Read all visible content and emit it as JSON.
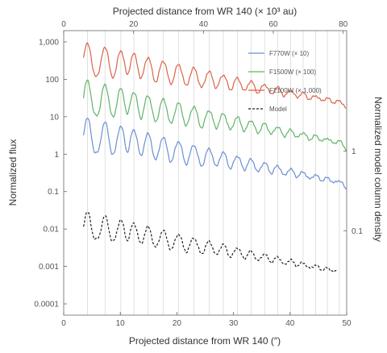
{
  "chart_data": {
    "type": "line",
    "x_bottom_label": "Projected distance from WR 140 (″)",
    "x_top_label": "Projected distance from WR 140 (× 10³ au)",
    "y_left_label": "Normalized flux",
    "y_right_label": "Normalized model column density",
    "x_bottom_lim": [
      0,
      50
    ],
    "x_bottom_ticks": [
      0,
      10,
      20,
      30,
      40,
      50
    ],
    "x_top_lim": [
      0,
      81
    ],
    "x_top_ticks": [
      0,
      20,
      40,
      60,
      80
    ],
    "y_left_scale": "log",
    "y_left_lim": [
      5e-05,
      2000
    ],
    "y_left_tick_labels": [
      "1,000",
      "100",
      "10",
      "1",
      "0.1",
      "0.01",
      "0.001",
      "0.0001"
    ],
    "y_right_tick_labels": [
      "1",
      "0.1"
    ],
    "vertical_guides": [
      4.2,
      7.3,
      10.1,
      12.4,
      14.9,
      17.6,
      20.3,
      23.0,
      25.7,
      28.2,
      30.7,
      33.1,
      35.5,
      37.8,
      40.1,
      42.3,
      44.5,
      46.6,
      48.7
    ],
    "legend": {
      "position": "top-right"
    },
    "series": [
      {
        "name": "F770W (× 10)",
        "color": "#6b8fd1",
        "style": "solid",
        "x_range": [
          3.5,
          50
        ],
        "base": 1.2,
        "decay": 0.055,
        "peak_factor": 8
      },
      {
        "name": "F1500W (× 100)",
        "color": "#5fb36a",
        "style": "solid",
        "x_range": [
          3.5,
          50
        ],
        "base": 12,
        "decay": 0.052,
        "peak_factor": 8
      },
      {
        "name": "F2100W (× 1,000)",
        "color": "#d9644a",
        "style": "solid",
        "x_range": [
          3.5,
          50
        ],
        "base": 140,
        "decay": 0.05,
        "peak_factor": 7
      },
      {
        "name": "Model",
        "color": "#222222",
        "style": "dashed",
        "x_range": [
          3.5,
          48.5
        ],
        "base": 0.006,
        "decay": 0.055,
        "peak_factor": 5
      }
    ]
  }
}
